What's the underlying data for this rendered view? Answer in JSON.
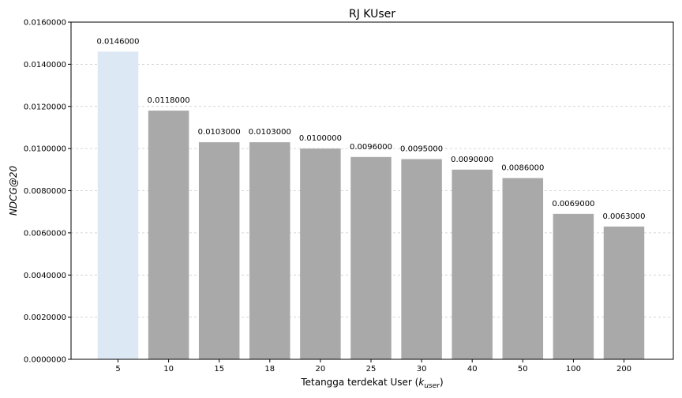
{
  "chart_data": {
    "type": "bar",
    "title": "RJ KUser",
    "xlabel": "Tetangga terdekat User (",
    "xlabel_math_base": "k",
    "xlabel_math_sub": "user",
    "xlabel_close": ")",
    "ylabel": "NDCG@20",
    "categories": [
      "5",
      "10",
      "15",
      "18",
      "20",
      "25",
      "30",
      "40",
      "50",
      "100",
      "200"
    ],
    "values": [
      0.0146,
      0.0118,
      0.0103,
      0.0103,
      0.01,
      0.0096,
      0.0095,
      0.009,
      0.0086,
      0.0069,
      0.0063
    ],
    "value_labels": [
      "0.0146000",
      "0.0118000",
      "0.0103000",
      "0.0103000",
      "0.0100000",
      "0.0096000",
      "0.0095000",
      "0.0090000",
      "0.0086000",
      "0.0069000",
      "0.0063000"
    ],
    "ylim": [
      0,
      0.016
    ],
    "yticks": [
      0,
      0.002,
      0.004,
      0.006,
      0.008,
      0.01,
      0.012,
      0.014,
      0.016
    ],
    "ytick_labels": [
      "0.0000000",
      "0.0020000",
      "0.0040000",
      "0.0060000",
      "0.0080000",
      "0.0100000",
      "0.0120000",
      "0.0140000",
      "0.0160000"
    ],
    "grid": "horizontal-dashed",
    "highlight_index": 0,
    "colors": {
      "bar": "#a9a9a9",
      "highlight": "#dce8f4",
      "grid": "#c8c8c8",
      "axis": "#000000"
    }
  }
}
